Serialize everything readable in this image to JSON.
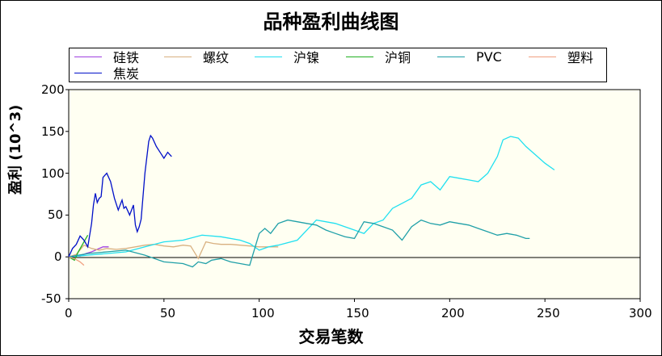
{
  "chart_data": {
    "type": "line",
    "title": "品种盈利曲线图",
    "xlabel": "交易笔数",
    "ylabel": "盈利 (10^3)",
    "xlim": [
      0,
      300
    ],
    "ylim": [
      -50,
      200
    ],
    "x_ticks": [
      "0",
      "50",
      "100",
      "150",
      "200",
      "250",
      "300"
    ],
    "y_ticks": [
      "200",
      "150",
      "100",
      "50",
      "0",
      "-50"
    ],
    "grid": false,
    "legend_position": "top",
    "plot_background": "#fffff0",
    "series": [
      {
        "name": "硅铁",
        "color": "#a040e0",
        "x": [
          0,
          3,
          6,
          9,
          12,
          15,
          18,
          21
        ],
        "y": [
          0,
          2,
          1,
          4,
          6,
          9,
          12,
          12
        ]
      },
      {
        "name": "螺纹",
        "color": "#d8b080",
        "x": [
          0,
          4,
          8,
          12,
          16,
          20,
          25,
          30,
          35,
          40,
          45,
          50,
          55,
          60,
          64,
          68,
          72,
          76,
          80,
          85,
          90,
          95,
          100,
          105,
          110
        ],
        "y": [
          0,
          3,
          14,
          10,
          8,
          10,
          9,
          10,
          12,
          14,
          15,
          13,
          12,
          14,
          13,
          -2,
          18,
          16,
          15,
          15,
          14,
          13,
          12,
          12,
          12
        ]
      },
      {
        "name": "沪镍",
        "color": "#20e0f0",
        "x": [
          0,
          10,
          20,
          30,
          40,
          50,
          60,
          70,
          80,
          90,
          95,
          100,
          105,
          110,
          120,
          130,
          140,
          150,
          155,
          160,
          165,
          170,
          175,
          180,
          185,
          190,
          195,
          200,
          205,
          210,
          215,
          220,
          225,
          228,
          232,
          236,
          240,
          245,
          250,
          255
        ],
        "y": [
          0,
          2,
          4,
          6,
          12,
          18,
          20,
          26,
          24,
          20,
          16,
          8,
          12,
          14,
          20,
          44,
          40,
          32,
          28,
          40,
          44,
          58,
          64,
          70,
          86,
          90,
          80,
          96,
          94,
          92,
          90,
          100,
          120,
          140,
          144,
          142,
          132,
          122,
          112,
          104
        ]
      },
      {
        "name": "沪铜",
        "color": "#20b020",
        "x": [
          0,
          3,
          5,
          8,
          10
        ],
        "y": [
          0,
          -4,
          6,
          18,
          26
        ]
      },
      {
        "name": "PVC",
        "color": "#20a0a8",
        "x": [
          0,
          10,
          20,
          30,
          40,
          50,
          60,
          65,
          68,
          72,
          75,
          80,
          85,
          90,
          95,
          100,
          103,
          106,
          110,
          115,
          120,
          125,
          130,
          135,
          140,
          145,
          150,
          155,
          160,
          165,
          170,
          175,
          180,
          185,
          190,
          195,
          200,
          205,
          210,
          215,
          220,
          225,
          230,
          235,
          240,
          242
        ],
        "y": [
          0,
          4,
          6,
          8,
          2,
          -6,
          -8,
          -12,
          -6,
          -8,
          -4,
          -2,
          -6,
          -8,
          -10,
          28,
          34,
          28,
          40,
          44,
          42,
          40,
          38,
          32,
          28,
          24,
          22,
          42,
          40,
          36,
          32,
          20,
          36,
          44,
          40,
          38,
          42,
          40,
          38,
          34,
          30,
          26,
          28,
          26,
          22,
          22
        ]
      },
      {
        "name": "塑料",
        "color": "#f0a080",
        "x": [
          0,
          3,
          6,
          8
        ],
        "y": [
          0,
          -2,
          -6,
          -10
        ]
      },
      {
        "name": "焦炭",
        "color": "#0010c8",
        "x": [
          0,
          2,
          4,
          6,
          8,
          10,
          12,
          13,
          14,
          15,
          16,
          17,
          18,
          20,
          22,
          24,
          26,
          27,
          28,
          29,
          30,
          32,
          34,
          35,
          36,
          37,
          38,
          40,
          42,
          43,
          44,
          46,
          48,
          50,
          52,
          54
        ],
        "y": [
          0,
          10,
          15,
          25,
          20,
          12,
          40,
          62,
          76,
          65,
          70,
          72,
          95,
          100,
          90,
          70,
          56,
          62,
          68,
          58,
          60,
          50,
          62,
          38,
          30,
          36,
          45,
          100,
          138,
          145,
          142,
          132,
          125,
          118,
          125,
          120
        ]
      }
    ]
  },
  "legend": {
    "items": [
      {
        "label": "硅铁",
        "color": "#a040e0"
      },
      {
        "label": "螺纹",
        "color": "#d8b080"
      },
      {
        "label": "沪镍",
        "color": "#20e0f0"
      },
      {
        "label": "沪铜",
        "color": "#20b020"
      },
      {
        "label": "PVC",
        "color": "#20a0a8"
      },
      {
        "label": "塑料",
        "color": "#f0a080"
      },
      {
        "label": "焦炭",
        "color": "#0010c8"
      }
    ]
  }
}
